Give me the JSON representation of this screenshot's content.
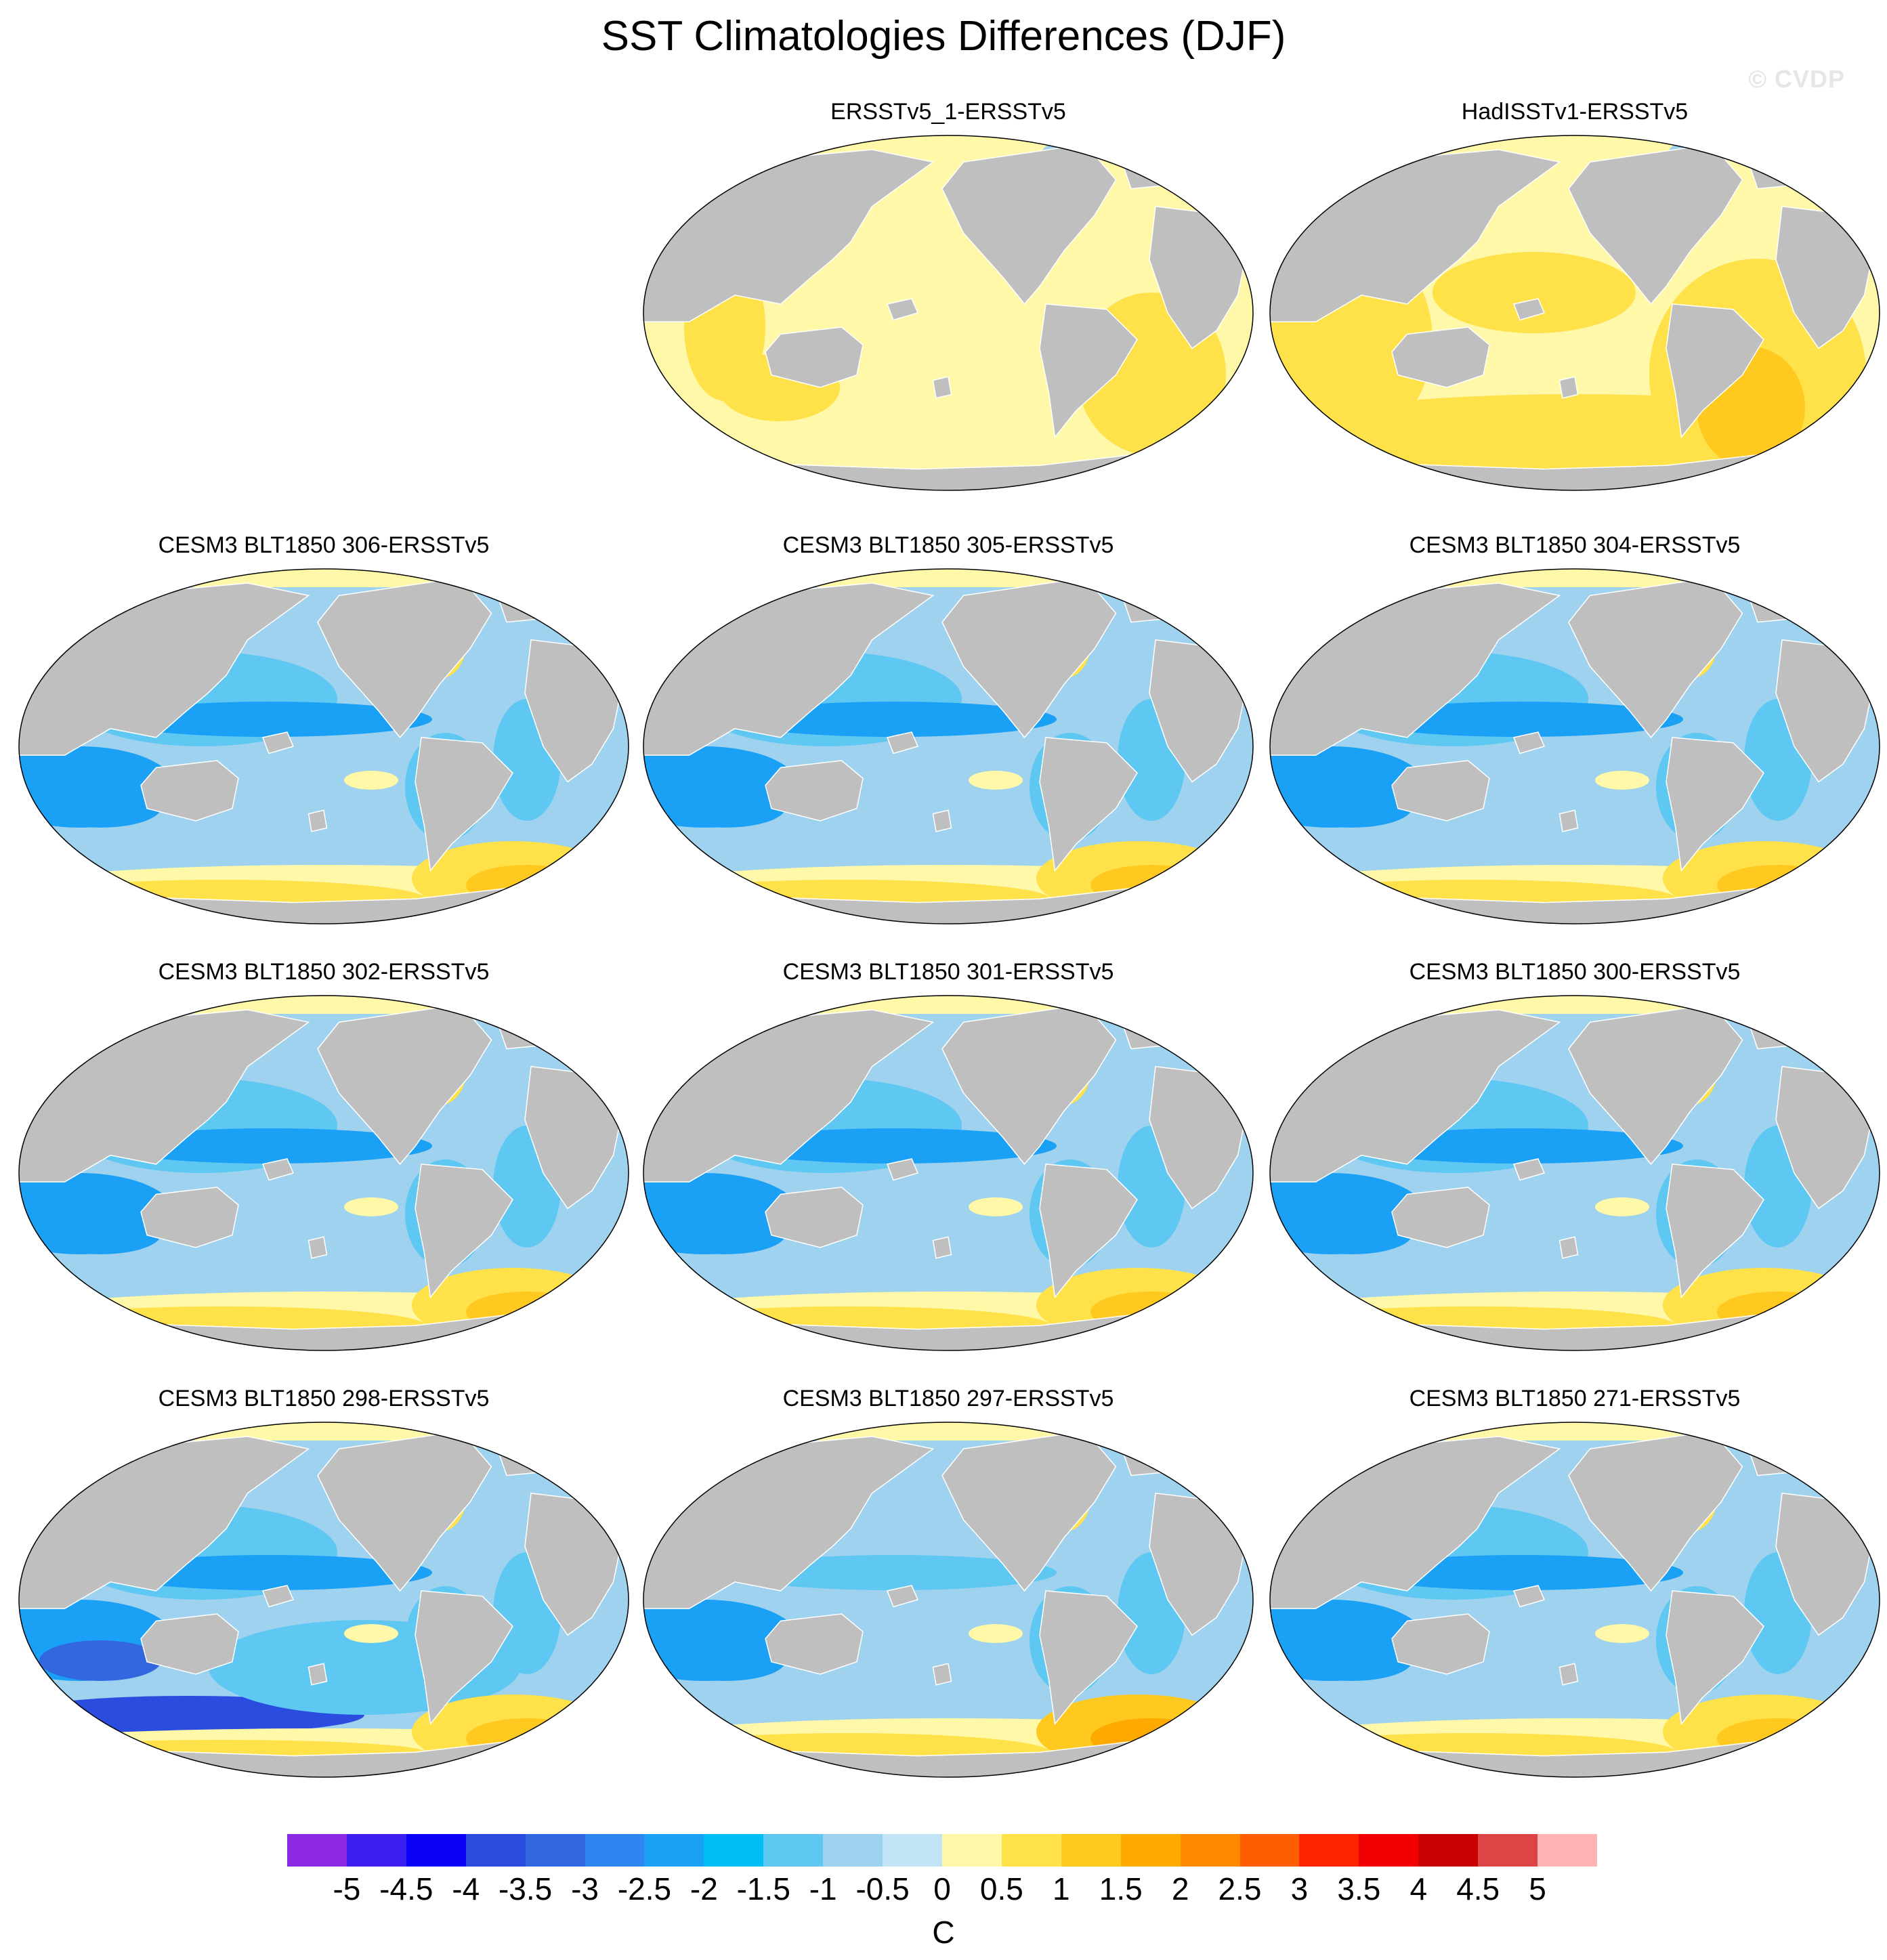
{
  "title": "SST Climatologies Differences (DJF)",
  "watermark": "© CVDP",
  "panels": [
    {
      "label": "ERSSTv5_1-ERSSTv5",
      "style": "obs_pale"
    },
    {
      "label": "HadISSTv1-ERSSTv5",
      "style": "obs_warm"
    },
    {
      "label": "CESM3 BLT1850 306-ERSSTv5",
      "style": "model"
    },
    {
      "label": "CESM3 BLT1850 305-ERSSTv5",
      "style": "model"
    },
    {
      "label": "CESM3 BLT1850 304-ERSSTv5",
      "style": "model"
    },
    {
      "label": "CESM3 BLT1850 302-ERSSTv5",
      "style": "model"
    },
    {
      "label": "CESM3 BLT1850 301-ERSSTv5",
      "style": "model"
    },
    {
      "label": "CESM3 BLT1850 300-ERSSTv5",
      "style": "model"
    },
    {
      "label": "CESM3 BLT1850 298-ERSSTv5",
      "style": "model_cold"
    },
    {
      "label": "CESM3 BLT1850 297-ERSSTv5",
      "style": "model_warm"
    },
    {
      "label": "CESM3 BLT1850 271-ERSSTv5",
      "style": "model"
    }
  ],
  "colorbar": {
    "units": "C",
    "ticks": [
      "-5",
      "-4.5",
      "-4",
      "-3.5",
      "-3",
      "-2.5",
      "-2",
      "-1.5",
      "-1",
      "-0.5",
      "0",
      "0.5",
      "1",
      "1.5",
      "2",
      "2.5",
      "3",
      "3.5",
      "4",
      "4.5",
      "5"
    ],
    "colors": [
      "#8e2be2",
      "#3c1ef0",
      "#0a00f5",
      "#2a4de0",
      "#3367e0",
      "#2e86f0",
      "#1aa0f5",
      "#00bdf5",
      "#5ec8f2",
      "#9ed2ee",
      "#c0e4f6",
      "#fff8a8",
      "#ffe14a",
      "#ffc91f",
      "#ffaa00",
      "#ff8a00",
      "#ff5e00",
      "#ff2400",
      "#f00000",
      "#c90000",
      "#db4545",
      "#ffb2b2"
    ]
  },
  "colors": {
    "land": "#bfbfbf",
    "ocean_light_blue": "#9ed2ee",
    "ocean_blue": "#5ec8f2",
    "ocean_deep_blue": "#1aa0f5",
    "pale_yellow": "#fff8a8",
    "yellow": "#ffe14a",
    "orange": "#ffaa00",
    "red": "#f00000"
  }
}
